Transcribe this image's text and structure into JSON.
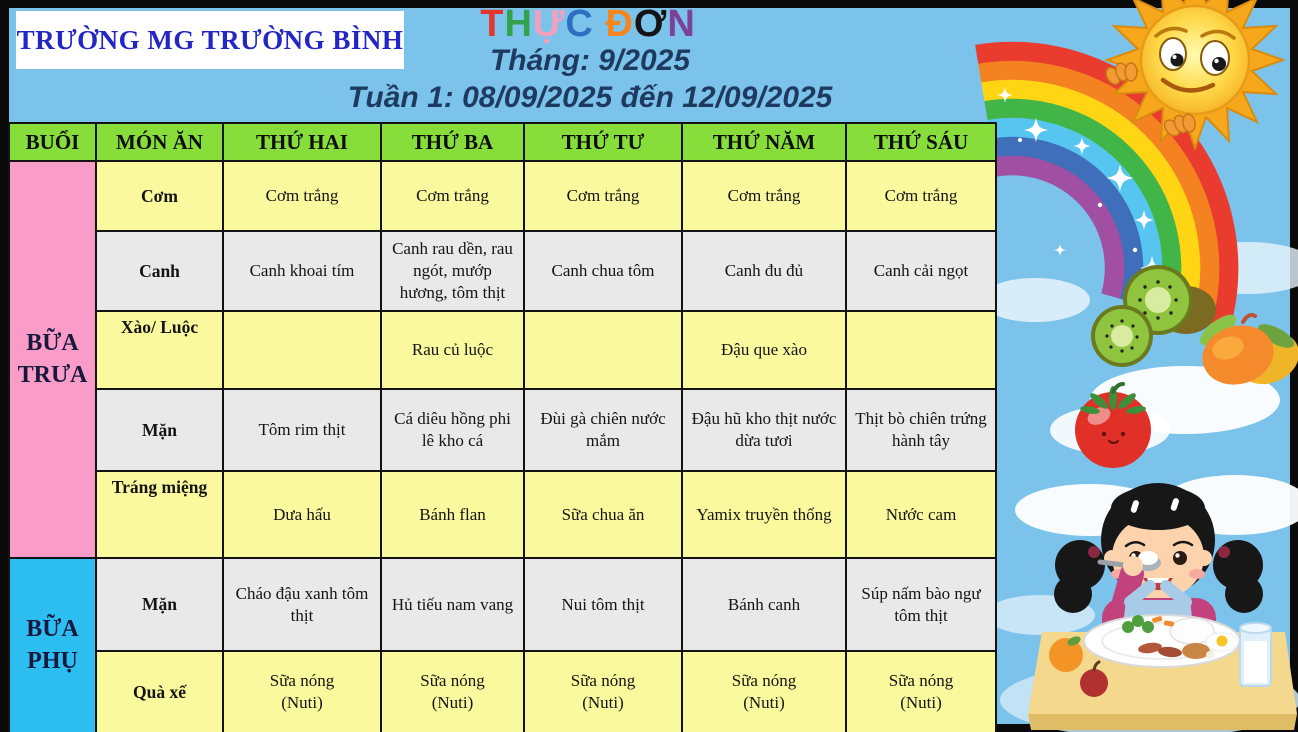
{
  "header": {
    "school_name": "TRƯỜNG MG TRƯỜNG BÌNH",
    "title": "THỰC ĐƠN",
    "title_letters": [
      {
        "ch": "T",
        "color": "#e4342b"
      },
      {
        "ch": "H",
        "color": "#33a24c"
      },
      {
        "ch": "Ự",
        "color": "#f2a0be"
      },
      {
        "ch": "C",
        "color": "#2f6fc1"
      },
      {
        "ch": " ",
        "color": "#000000"
      },
      {
        "ch": "Đ",
        "color": "#f5861f"
      },
      {
        "ch": "Ơ",
        "color": "#141414"
      },
      {
        "ch": "N",
        "color": "#7c4199"
      }
    ],
    "month_line": "Tháng: 9/2025",
    "week_line": "Tuần 1: 08/09/2025 đến 12/09/2025"
  },
  "table": {
    "columns": [
      "BUỔI",
      "MÓN ĂN",
      "THỨ HAI",
      "THỨ BA",
      "THỨ TƯ",
      "THỨ NĂM",
      "THỨ SÁU"
    ],
    "sections": [
      {
        "label": "BỮA TRƯA",
        "color": "#fa9cc8",
        "key": "lunch",
        "rows": [
          {
            "dish": "Cơm",
            "shade": "yellow",
            "label_align": "middle",
            "cells": [
              "Cơm trắng",
              "Cơm trắng",
              "Cơm trắng",
              "Cơm trắng",
              "Cơm trắng"
            ]
          },
          {
            "dish": "Canh",
            "shade": "gray",
            "label_align": "middle",
            "cells": [
              "Canh khoai tím",
              "Canh rau dền, rau ngót, mướp hương, tôm thịt",
              "Canh chua tôm",
              "Canh đu đủ",
              "Canh cải ngọt"
            ]
          },
          {
            "dish": "Xào/ Luộc",
            "shade": "yellow",
            "label_align": "top",
            "cells": [
              "",
              "Rau củ luộc",
              "",
              "Đậu que xào",
              ""
            ]
          },
          {
            "dish": "Mặn",
            "shade": "gray",
            "label_align": "middle",
            "cells": [
              "Tôm rim thịt",
              "Cá diêu hồng phi lê kho cá",
              "Đùi gà chiên nước mắm",
              "Đậu hũ kho thịt nước dừa tươi",
              "Thịt bò chiên trứng hành tây"
            ]
          },
          {
            "dish": "Tráng miệng",
            "shade": "yellow",
            "label_align": "top",
            "cells": [
              "Dưa hấu",
              "Bánh flan",
              "Sữa chua ăn",
              "Yamix truyền thống",
              "Nước cam"
            ]
          }
        ]
      },
      {
        "label": "BỮA PHỤ",
        "color": "#2cbef0",
        "key": "snack",
        "rows": [
          {
            "dish": "Mặn",
            "shade": "gray",
            "label_align": "middle",
            "cells": [
              "Cháo đậu xanh tôm thịt",
              "Hủ tiếu nam vang",
              "Nui tôm thịt",
              "Bánh canh",
              "Súp nấm bào ngư tôm thịt"
            ]
          },
          {
            "dish": "Quà xế",
            "shade": "yellow",
            "label_align": "middle",
            "cells": [
              "Sữa nóng\n(Nuti)",
              "Sữa nóng\n(Nuti)",
              "Sữa nóng\n(Nuti)",
              "Sữa nóng\n(Nuti)",
              "Sữa nóng\n(Nuti)"
            ]
          }
        ]
      }
    ]
  },
  "colors": {
    "frame": "#0a0a0a",
    "sky": "#7cc3ec",
    "header_green": "#87de3b",
    "row_yellow": "#fbf99d",
    "row_gray": "#e9e9e9",
    "lunch_pink": "#fa9cc8",
    "snack_cyan": "#2cbef0",
    "subtitle_navy": "#1e3a5e",
    "school_blue": "#2326c5"
  },
  "illustrations": [
    "sun-icon",
    "rainbow-icon",
    "sparkle-icon",
    "cloud-icon",
    "kiwi-icon",
    "mango-icon",
    "tomato-icon",
    "girl-eating-icon",
    "dining-table-icon",
    "milk-glass-icon"
  ]
}
